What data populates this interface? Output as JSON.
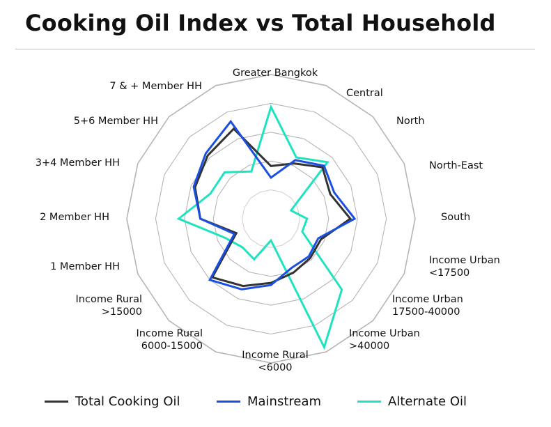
{
  "header": {
    "title": "Cooking Oil Index vs Total Household"
  },
  "colors": {
    "total": "#333333",
    "mainstream": "#1a4fe0",
    "alternate": "#1fe3c0",
    "grid": "#b5b5b5",
    "gridInner": "#d3d3d3"
  },
  "legend": [
    {
      "label": "Total Cooking Oil",
      "series": "total"
    },
    {
      "label": "Mainstream",
      "series": "mainstream"
    },
    {
      "label": "Alternate Oil",
      "series": "alternate"
    }
  ],
  "chart_data": {
    "type": "radar",
    "title": "Cooking Oil Index vs Total Household",
    "axis_range": [
      0,
      200
    ],
    "grid_levels": 5,
    "tick_labels_shown": false,
    "legend_position": "bottom",
    "categories": [
      [
        "Greater Bangkok"
      ],
      [
        "Central"
      ],
      [
        "North"
      ],
      [
        "North-East"
      ],
      [
        "South"
      ],
      [
        "Income Urban",
        "<17500"
      ],
      [
        "Income Urban",
        "17500-40000"
      ],
      [
        "Income Urban",
        ">40000"
      ],
      [
        "Income Rural",
        "<6000"
      ],
      [
        "Income Rural",
        "6000-15000"
      ],
      [
        "Income Rural",
        ">15000"
      ],
      [
        "1 Member HH"
      ],
      [
        "2 Member HH"
      ],
      [
        "3+4 Member HH"
      ],
      [
        "5+6 Member HH"
      ],
      [
        "7 & + Member HH"
      ]
    ],
    "series": [
      {
        "name": "Total Cooking Oil",
        "key": "total",
        "values": [
          73,
          83,
          101,
          89,
          110,
          75,
          77,
          81,
          89,
          101,
          115,
          52,
          98,
          114,
          124,
          135
        ]
      },
      {
        "name": "Mainstream",
        "key": "mainstream",
        "values": [
          57,
          88,
          104,
          95,
          116,
          71,
          74,
          74,
          92,
          106,
          120,
          55,
          98,
          116,
          128,
          146
        ]
      },
      {
        "name": "Alternate Oil",
        "key": "alternate",
        "values": [
          155,
          92,
          111,
          30,
          50,
          47,
          139,
          193,
          30,
          61,
          56,
          69,
          128,
          91,
          91,
          71
        ]
      }
    ]
  }
}
